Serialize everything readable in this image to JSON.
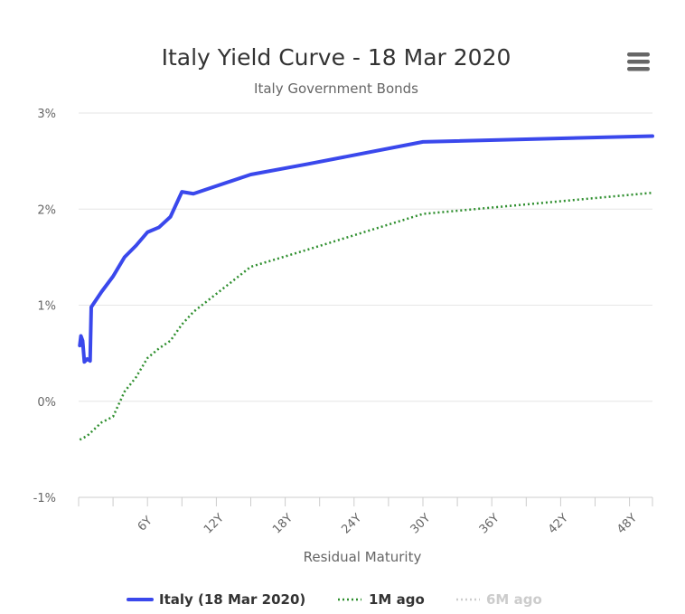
{
  "colors": {
    "italy": "#3a48ec",
    "one_month_ago": "#2f8f2f",
    "six_months_ago": "#cccccc",
    "grid": "#e6e6e6",
    "text": "#333333",
    "muted_text": "#666666",
    "menu_icon": "#666666"
  },
  "chart_data": {
    "type": "line",
    "title": "Italy Yield Curve - 18 Mar 2020",
    "subtitle": "Italy Government Bonds",
    "xlabel": "Residual Maturity",
    "ylabel": "",
    "x_unit_suffix": "Y",
    "xlim": [
      0,
      50
    ],
    "ylim": [
      -1,
      3
    ],
    "x_ticks": [
      6,
      12,
      18,
      24,
      30,
      36,
      42,
      48
    ],
    "x_minor_ticks": [
      0,
      3,
      6,
      9,
      12,
      15,
      18,
      21,
      24,
      27,
      30,
      33,
      36,
      39,
      42,
      45,
      48,
      50
    ],
    "y_ticks": [
      -1,
      0,
      1,
      2,
      3
    ],
    "y_tick_labels": [
      "-1%",
      "0%",
      "1%",
      "2%",
      "3%"
    ],
    "grid": true,
    "legend_position": "bottom",
    "series": [
      {
        "name": "Italy (18 Mar 2020)",
        "style": "solid",
        "visible": true,
        "points": [
          [
            0.1,
            0.58
          ],
          [
            0.2,
            0.68
          ],
          [
            0.35,
            0.63
          ],
          [
            0.5,
            0.41
          ],
          [
            0.75,
            0.44
          ],
          [
            1.0,
            0.42
          ],
          [
            1.1,
            0.98
          ],
          [
            2,
            1.14
          ],
          [
            3,
            1.3
          ],
          [
            4,
            1.5
          ],
          [
            5,
            1.62
          ],
          [
            6,
            1.76
          ],
          [
            7,
            1.81
          ],
          [
            8,
            1.92
          ],
          [
            9,
            2.18
          ],
          [
            10,
            2.16
          ],
          [
            15,
            2.36
          ],
          [
            20,
            2.47
          ],
          [
            30,
            2.7
          ],
          [
            50,
            2.76
          ]
        ]
      },
      {
        "name": "1M ago",
        "style": "dotted",
        "visible": true,
        "points": [
          [
            0.1,
            -0.4
          ],
          [
            0.75,
            -0.36
          ],
          [
            2,
            -0.22
          ],
          [
            3,
            -0.16
          ],
          [
            4,
            0.1
          ],
          [
            5,
            0.25
          ],
          [
            6,
            0.45
          ],
          [
            7,
            0.55
          ],
          [
            8,
            0.63
          ],
          [
            9,
            0.8
          ],
          [
            10,
            0.93
          ],
          [
            15,
            1.4
          ],
          [
            20,
            1.58
          ],
          [
            30,
            1.95
          ],
          [
            50,
            2.17
          ]
        ]
      },
      {
        "name": "6M ago",
        "style": "dotted",
        "visible": false,
        "points": []
      }
    ]
  },
  "menu": {
    "icon": "hamburger-menu-icon"
  }
}
